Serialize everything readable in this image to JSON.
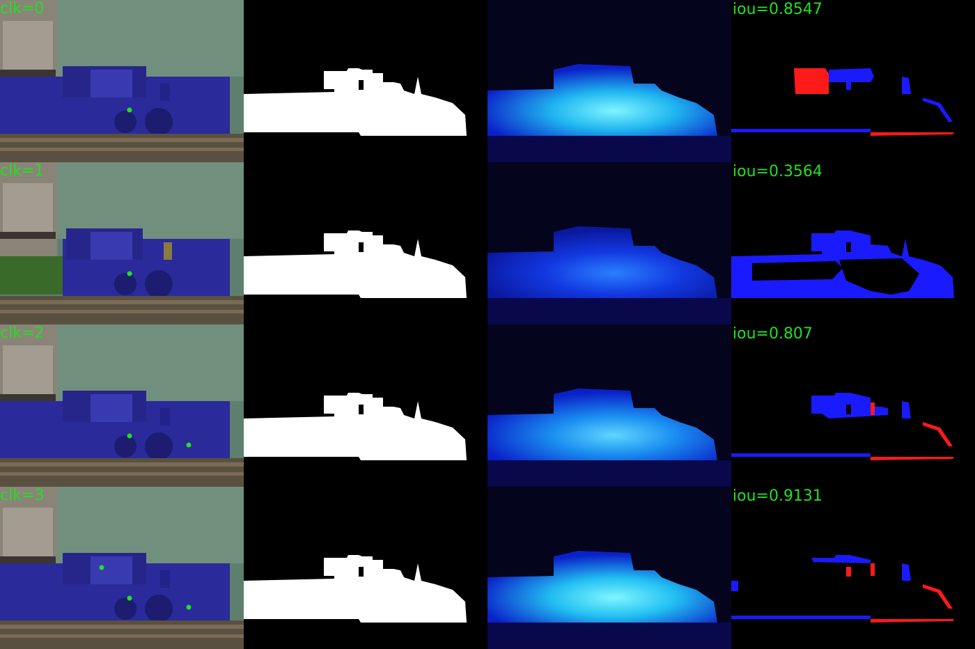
{
  "colors": {
    "label_green": "#22e022",
    "click_point": "#22e022",
    "heat_bright": "#39e0ff",
    "heat_dark": "#0a20c8",
    "error_fn": "#ff1a1a",
    "error_fp": "#1a1aff",
    "mask": "#ffffff",
    "train_blue": "#2a2a9a",
    "forest": "#5e7f6e"
  },
  "columns": [
    "image-with-clicks",
    "ground-truth-mask",
    "prediction-heatmap",
    "error-map"
  ],
  "rows": [
    {
      "clk_label": "clk=0",
      "iou_label": "iou=0.8547",
      "heat_level": 0.9
    },
    {
      "clk_label": "clk=1",
      "iou_label": "iou=0.3564",
      "heat_level": 0.35
    },
    {
      "clk_label": "clk=2",
      "iou_label": "iou=0.807",
      "heat_level": 0.7
    },
    {
      "clk_label": "clk=3",
      "iou_label": "iou=0.9131",
      "heat_level": 0.85
    }
  ]
}
